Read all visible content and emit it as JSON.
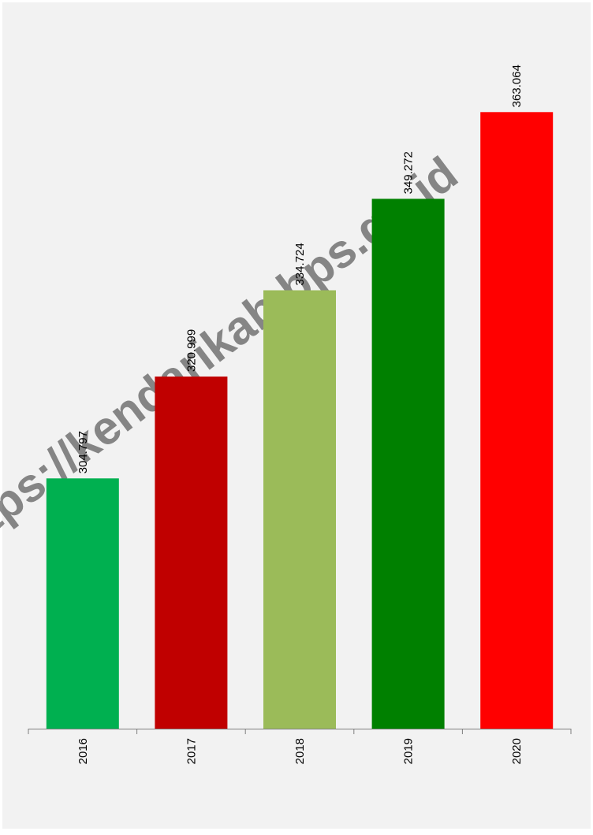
{
  "watermark": "https://kendarikab.bps.go.id",
  "chart_data": {
    "type": "bar",
    "categories": [
      "2016",
      "2017",
      "2018",
      "2019",
      "2020"
    ],
    "values": [
      304797,
      320999,
      334724,
      349272,
      363064
    ],
    "data_labels": [
      "304.797",
      "320.999",
      "334.724",
      "349.272",
      "363.064"
    ],
    "colors": [
      "#00b050",
      "#c00000",
      "#9bbb59",
      "#008000",
      "#ff0000"
    ],
    "title": "",
    "xlabel": "",
    "ylabel": "",
    "ylim": [
      265000,
      375000
    ],
    "grid": false,
    "legend": "none",
    "background": "#f2f2f2"
  }
}
